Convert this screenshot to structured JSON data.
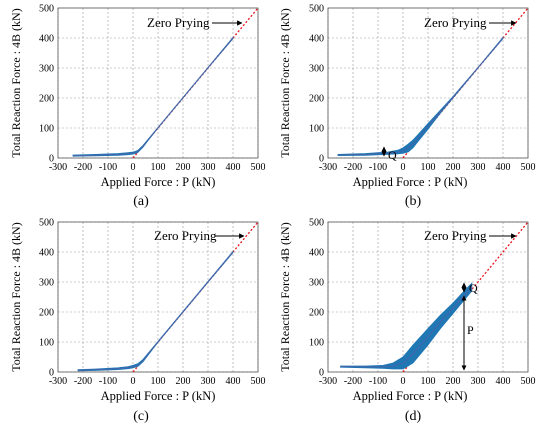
{
  "panels": [
    {
      "label": "(a)",
      "xlabel": "Applied Force : P (kN)",
      "ylabel": "Total Reaction Force : 4B (kN)",
      "zero_prying_label": "Zero Prying",
      "annotations": []
    },
    {
      "label": "(b)",
      "xlabel": "Applied Force : P (kN)",
      "ylabel": "Total Reaction Force : 4B (kN)",
      "zero_prying_label": "Zero Prying",
      "annotations": [
        {
          "text": "Q",
          "kind": "Q"
        }
      ]
    },
    {
      "label": "(c)",
      "xlabel": "Applied Force : P (kN)",
      "ylabel": "Total Reaction Force : 4B (kN)",
      "zero_prying_label": "Zero Prying",
      "annotations": []
    },
    {
      "label": "(d)",
      "xlabel": "Applied Force : P (kN)",
      "ylabel": "Total Reaction Force : 4B (kN)",
      "zero_prying_label": "Zero Prying",
      "annotations": [
        {
          "text": "Q",
          "kind": "Q"
        },
        {
          "text": "P",
          "kind": "P"
        }
      ]
    }
  ],
  "colors": {
    "band": "#1f77b4",
    "mean_line": "#7b4fa0",
    "zero_prying": "#e8141c",
    "grid": "#9a9a9a"
  },
  "chart_data": [
    {
      "type": "line",
      "title": "(a)",
      "xlabel": "Applied Force : P (kN)",
      "ylabel": "Total Reaction Force : 4B (kN)",
      "xlim": [
        -300,
        500
      ],
      "ylim": [
        0,
        500
      ],
      "xticks": [
        -300,
        -200,
        -100,
        0,
        100,
        200,
        300,
        400,
        500
      ],
      "yticks": [
        0,
        100,
        200,
        300,
        400,
        500
      ],
      "grid": true,
      "series": [
        {
          "name": "Zero Prying",
          "x": [
            0,
            500
          ],
          "y": [
            0,
            500
          ]
        },
        {
          "x": [
            -240,
            -150,
            -60,
            -20,
            0,
            10,
            20,
            40,
            60,
            100,
            200,
            300,
            400
          ],
          "y_lower": [
            6,
            7,
            9,
            11,
            13,
            15,
            19,
            36,
            58,
            100,
            200,
            300,
            398
          ],
          "y_upper": [
            10,
            12,
            15,
            18,
            20,
            22,
            26,
            42,
            62,
            102,
            202,
            302,
            402
          ]
        }
      ]
    },
    {
      "type": "line",
      "title": "(b)",
      "xlabel": "Applied Force : P (kN)",
      "ylabel": "Total Reaction Force : 4B (kN)",
      "xlim": [
        -300,
        500
      ],
      "ylim": [
        0,
        500
      ],
      "xticks": [
        -300,
        -200,
        -100,
        0,
        100,
        200,
        300,
        400,
        500
      ],
      "yticks": [
        0,
        100,
        200,
        300,
        400,
        500
      ],
      "grid": true,
      "series": [
        {
          "name": "Zero Prying",
          "x": [
            0,
            500
          ],
          "y": [
            0,
            500
          ]
        },
        {
          "x": [
            -260,
            -150,
            -60,
            -20,
            0,
            20,
            40,
            60,
            100,
            150,
            200,
            300,
            400
          ],
          "y_lower": [
            8,
            9,
            12,
            14,
            16,
            20,
            34,
            55,
            96,
            150,
            200,
            300,
            398
          ],
          "y_upper": [
            12,
            15,
            20,
            26,
            34,
            46,
            60,
            78,
            115,
            160,
            205,
            302,
            402
          ]
        }
      ]
    },
    {
      "type": "line",
      "title": "(c)",
      "xlabel": "Applied Force : P (kN)",
      "ylabel": "Total Reaction Force : 4B (kN)",
      "xlim": [
        -300,
        500
      ],
      "ylim": [
        0,
        500
      ],
      "xticks": [
        -300,
        -200,
        -100,
        0,
        100,
        200,
        300,
        400,
        500
      ],
      "yticks": [
        0,
        100,
        200,
        300,
        400,
        500
      ],
      "grid": true,
      "series": [
        {
          "name": "Zero Prying",
          "x": [
            0,
            500
          ],
          "y": [
            0,
            500
          ]
        },
        {
          "x": [
            -220,
            -150,
            -60,
            -20,
            0,
            20,
            40,
            60,
            100,
            200,
            300,
            400
          ],
          "y_lower": [
            4,
            5,
            8,
            11,
            14,
            19,
            34,
            56,
            99,
            199,
            299,
            398
          ],
          "y_upper": [
            8,
            10,
            14,
            18,
            22,
            28,
            42,
            62,
            102,
            202,
            302,
            402
          ]
        }
      ]
    },
    {
      "type": "line",
      "title": "(d)",
      "xlabel": "Applied Force : P (kN)",
      "ylabel": "Total Reaction Force : 4B (kN)",
      "xlim": [
        -300,
        500
      ],
      "ylim": [
        0,
        500
      ],
      "xticks": [
        -300,
        -200,
        -100,
        0,
        100,
        200,
        300,
        400,
        500
      ],
      "yticks": [
        0,
        100,
        200,
        300,
        400,
        500
      ],
      "grid": true,
      "series": [
        {
          "name": "Zero Prying",
          "x": [
            0,
            500
          ],
          "y": [
            0,
            500
          ]
        },
        {
          "x": [
            -250,
            -150,
            -80,
            -40,
            0,
            40,
            100,
            150,
            200,
            250,
            275
          ],
          "y_lower": [
            16,
            14,
            12,
            10,
            10,
            30,
            90,
            145,
            195,
            245,
            270
          ],
          "y_upper": [
            20,
            20,
            22,
            30,
            50,
            90,
            145,
            190,
            230,
            275,
            296
          ]
        }
      ]
    }
  ]
}
